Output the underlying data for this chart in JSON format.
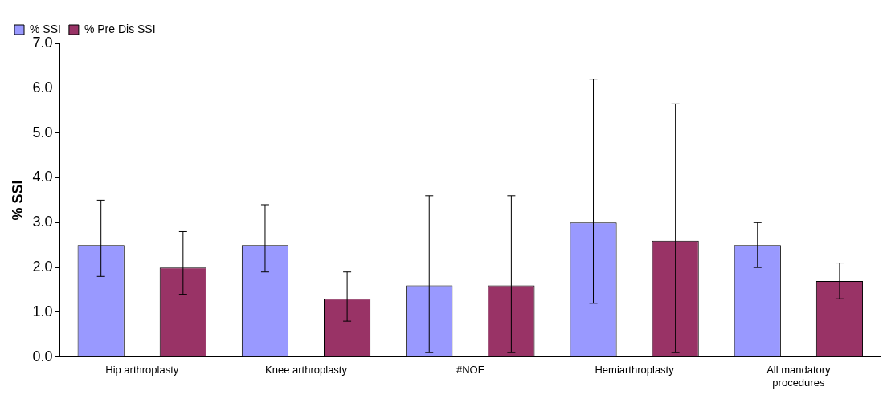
{
  "chart_data": {
    "type": "bar",
    "ylabel": "% SSI",
    "categories": [
      "Hip arthroplasty",
      "Knee arthroplasty",
      "#NOF",
      "Hemiarthroplasty",
      "All mandatory procedures"
    ],
    "series": [
      {
        "name": "% SSI",
        "color": "#9999ff",
        "values": [
          2.5,
          2.5,
          1.6,
          3.0,
          2.5
        ],
        "errors": [
          [
            1.8,
            3.5
          ],
          [
            1.9,
            3.4
          ],
          [
            0.1,
            3.6
          ],
          [
            1.2,
            6.2
          ],
          [
            2.0,
            3.0
          ]
        ]
      },
      {
        "name": "% Pre Dis SSI",
        "color": "#993366",
        "values": [
          2.0,
          1.3,
          1.6,
          2.6,
          1.7
        ],
        "errors": [
          [
            1.4,
            2.8
          ],
          [
            0.8,
            1.9
          ],
          [
            0.1,
            3.6
          ],
          [
            0.1,
            5.65
          ],
          [
            1.3,
            2.1
          ]
        ]
      }
    ],
    "ylim": [
      0,
      7
    ],
    "yticks": [
      {
        "value": 0,
        "label": "0.0"
      },
      {
        "value": 1,
        "label": "1.0"
      },
      {
        "value": 2,
        "label": "2.0"
      },
      {
        "value": 3,
        "label": "3.0"
      },
      {
        "value": 4,
        "label": "4.0"
      },
      {
        "value": 5,
        "label": "5.0"
      },
      {
        "value": 6,
        "label": "6.0"
      },
      {
        "value": 7,
        "label": "7.0"
      }
    ],
    "grid": false,
    "legend": "top left"
  }
}
